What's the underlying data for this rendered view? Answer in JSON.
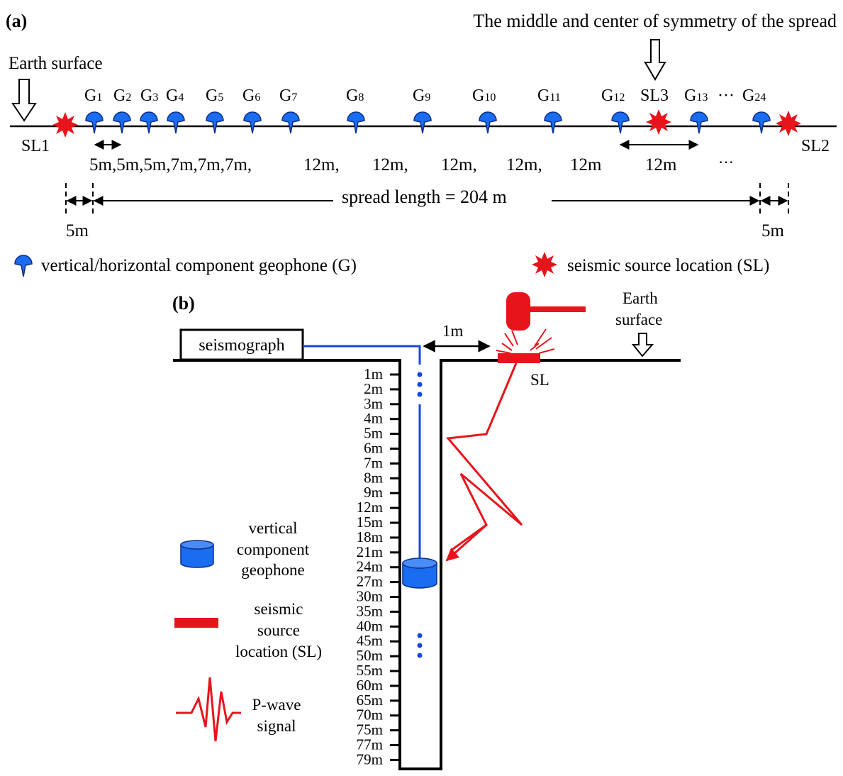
{
  "panel_a": {
    "label": "(a)",
    "center_note": "The middle and center of symmetry of the spread",
    "earth_surface": "Earth surface",
    "geophones": [
      {
        "base": "G",
        "sub": "1"
      },
      {
        "base": "G",
        "sub": "2"
      },
      {
        "base": "G",
        "sub": "3"
      },
      {
        "base": "G",
        "sub": "4"
      },
      {
        "base": "G",
        "sub": "5"
      },
      {
        "base": "G",
        "sub": "6"
      },
      {
        "base": "G",
        "sub": "7"
      },
      {
        "base": "G",
        "sub": "8"
      },
      {
        "base": "G",
        "sub": "9"
      },
      {
        "base": "G",
        "sub": "10"
      },
      {
        "base": "G",
        "sub": "11"
      },
      {
        "base": "G",
        "sub": "12"
      },
      {
        "base": "G",
        "sub": "13"
      },
      {
        "base": "G",
        "sub": "24"
      }
    ],
    "sl3_label": "SL3",
    "ellipsis": "···",
    "sl1_label": "SL1",
    "sl2_label": "SL2",
    "spacing_text": "5m,5m,5m,7m,7m,7m,",
    "spacing_12": [
      "12m,",
      "12m,",
      "12m,",
      "12m,",
      "12m"
    ],
    "spacing_center": "12m",
    "spacing_dots": "···",
    "spread_length": "spread length = 204 m",
    "offset_left": "5m",
    "offset_right": "5m",
    "legend_geophone": "vertical/horizontal component geophone (G)",
    "legend_source": "seismic source location (SL)"
  },
  "panel_b": {
    "label": "(b)",
    "seismograph": "seismograph",
    "offset": "1m",
    "earth_surface_line1": "Earth",
    "earth_surface_line2": "surface",
    "sl": "SL",
    "depths": [
      "1m",
      "2m",
      "3m",
      "4m",
      "5m",
      "6m",
      "7m",
      "8m",
      "9m",
      "12m",
      "15m",
      "18m",
      "21m",
      "24m",
      "27m",
      "30m",
      "35m",
      "40m",
      "45m",
      "50m",
      "55m",
      "60m",
      "65m",
      "70m",
      "75m",
      "77m",
      "79m"
    ],
    "legend_geophone": [
      "vertical",
      "component",
      "geophone"
    ],
    "legend_source": [
      "seismic",
      "source",
      "location (SL)"
    ],
    "legend_pwave": [
      "P-wave",
      "signal"
    ]
  },
  "colors": {
    "geophone_blue": "#1a6cf0",
    "source_red": "#e8141c",
    "cable_blue": "#1447e6"
  }
}
